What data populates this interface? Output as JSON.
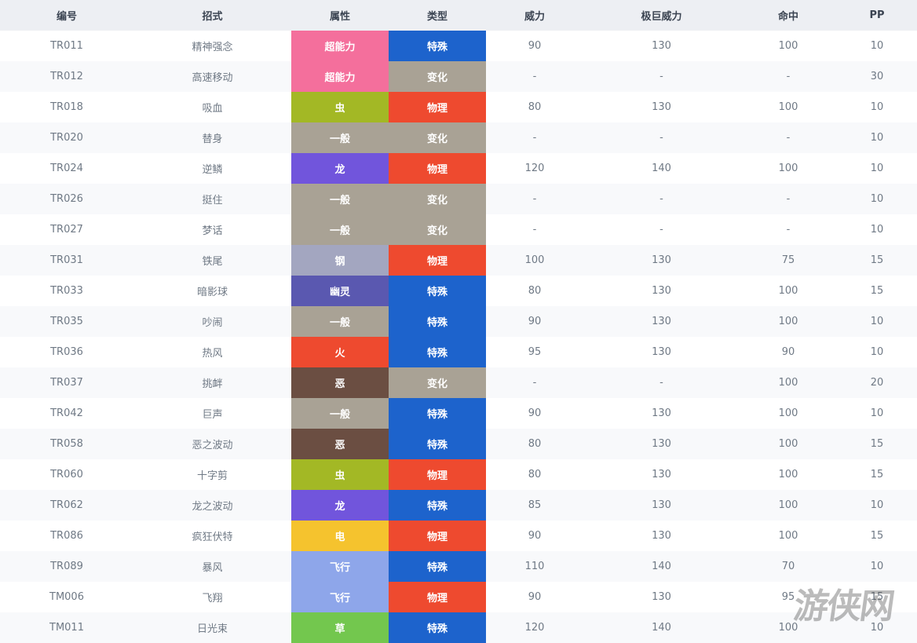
{
  "headers": [
    "编号",
    "招式",
    "属性",
    "类型",
    "威力",
    "极巨威力",
    "命中",
    "PP"
  ],
  "colors": {
    "超能力": "#f46f9c",
    "虫": "#a3b825",
    "一般": "#a9a295",
    "龙": "#7155dc",
    "钢": "#a3a6c0",
    "幽灵": "#5a58b0",
    "火": "#ee4a2f",
    "恶": "#6b4e42",
    "电": "#f5c32e",
    "飞行": "#8ea6ea",
    "草": "#73c74e",
    "特殊": "#1d63cc",
    "物理": "#ee4a2f",
    "变化": "#a9a295"
  },
  "rows": [
    {
      "id": "TR011",
      "move": "精神强念",
      "type": "超能力",
      "category": "特殊",
      "power": "90",
      "max_power": "130",
      "accuracy": "100",
      "pp": "10"
    },
    {
      "id": "TR012",
      "move": "高速移动",
      "type": "超能力",
      "category": "变化",
      "power": "-",
      "max_power": "-",
      "accuracy": "-",
      "pp": "30"
    },
    {
      "id": "TR018",
      "move": "吸血",
      "type": "虫",
      "category": "物理",
      "power": "80",
      "max_power": "130",
      "accuracy": "100",
      "pp": "10"
    },
    {
      "id": "TR020",
      "move": "替身",
      "type": "一般",
      "category": "变化",
      "power": "-",
      "max_power": "-",
      "accuracy": "-",
      "pp": "10"
    },
    {
      "id": "TR024",
      "move": "逆鳞",
      "type": "龙",
      "category": "物理",
      "power": "120",
      "max_power": "140",
      "accuracy": "100",
      "pp": "10"
    },
    {
      "id": "TR026",
      "move": "挺住",
      "type": "一般",
      "category": "变化",
      "power": "-",
      "max_power": "-",
      "accuracy": "-",
      "pp": "10"
    },
    {
      "id": "TR027",
      "move": "梦话",
      "type": "一般",
      "category": "变化",
      "power": "-",
      "max_power": "-",
      "accuracy": "-",
      "pp": "10"
    },
    {
      "id": "TR031",
      "move": "铁尾",
      "type": "钢",
      "category": "物理",
      "power": "100",
      "max_power": "130",
      "accuracy": "75",
      "pp": "15"
    },
    {
      "id": "TR033",
      "move": "暗影球",
      "type": "幽灵",
      "category": "特殊",
      "power": "80",
      "max_power": "130",
      "accuracy": "100",
      "pp": "15"
    },
    {
      "id": "TR035",
      "move": "吵闹",
      "type": "一般",
      "category": "特殊",
      "power": "90",
      "max_power": "130",
      "accuracy": "100",
      "pp": "10"
    },
    {
      "id": "TR036",
      "move": "热风",
      "type": "火",
      "category": "特殊",
      "power": "95",
      "max_power": "130",
      "accuracy": "90",
      "pp": "10"
    },
    {
      "id": "TR037",
      "move": "挑衅",
      "type": "恶",
      "category": "变化",
      "power": "-",
      "max_power": "-",
      "accuracy": "100",
      "pp": "20"
    },
    {
      "id": "TR042",
      "move": "巨声",
      "type": "一般",
      "category": "特殊",
      "power": "90",
      "max_power": "130",
      "accuracy": "100",
      "pp": "10"
    },
    {
      "id": "TR058",
      "move": "恶之波动",
      "type": "恶",
      "category": "特殊",
      "power": "80",
      "max_power": "130",
      "accuracy": "100",
      "pp": "15"
    },
    {
      "id": "TR060",
      "move": "十字剪",
      "type": "虫",
      "category": "物理",
      "power": "80",
      "max_power": "130",
      "accuracy": "100",
      "pp": "15"
    },
    {
      "id": "TR062",
      "move": "龙之波动",
      "type": "龙",
      "category": "特殊",
      "power": "85",
      "max_power": "130",
      "accuracy": "100",
      "pp": "10"
    },
    {
      "id": "TR086",
      "move": "疯狂伏特",
      "type": "电",
      "category": "物理",
      "power": "90",
      "max_power": "130",
      "accuracy": "100",
      "pp": "15"
    },
    {
      "id": "TR089",
      "move": "暴风",
      "type": "飞行",
      "category": "特殊",
      "power": "110",
      "max_power": "140",
      "accuracy": "70",
      "pp": "10"
    },
    {
      "id": "TM006",
      "move": "飞翔",
      "type": "飞行",
      "category": "物理",
      "power": "90",
      "max_power": "130",
      "accuracy": "95",
      "pp": "15"
    },
    {
      "id": "TM011",
      "move": "日光束",
      "type": "草",
      "category": "特殊",
      "power": "120",
      "max_power": "140",
      "accuracy": "100",
      "pp": "10"
    }
  ],
  "watermark": "游侠网"
}
